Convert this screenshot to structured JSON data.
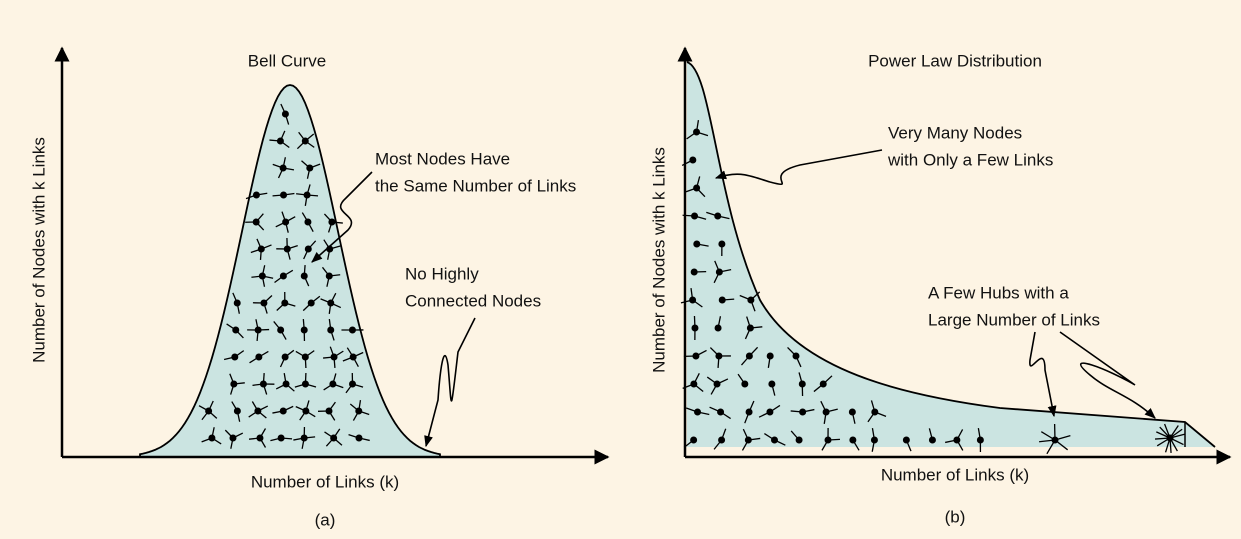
{
  "panels": [
    {
      "title": "Bell Curve",
      "annotations": [
        [
          "Most Nodes Have",
          "the Same Number of Links"
        ],
        [
          "No Highly",
          "Connected Nodes"
        ]
      ],
      "y_label": "Number of Nodes with k Links",
      "x_label": "Number of Links (k)",
      "caption": "(a)"
    },
    {
      "title": "Power Law Distribution",
      "annotations": [
        [
          "Very Many Nodes",
          "with Only a Few Links"
        ],
        [
          "A Few Hubs with a",
          "Large Number of Links"
        ]
      ],
      "y_label": "Number of Nodes with k Links",
      "x_label": "Number of Links (k)",
      "caption": "(b)"
    }
  ]
}
